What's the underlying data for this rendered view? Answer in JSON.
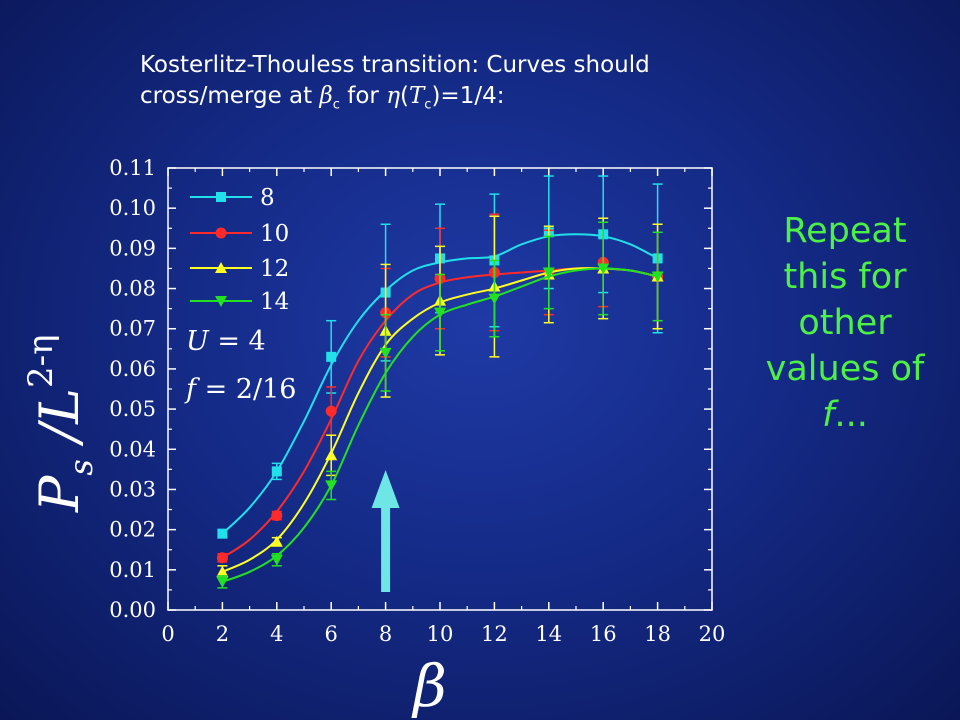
{
  "slide": {
    "title_line1": "Kosterlitz-Thouless transition: Curves should",
    "title_line2_prefix": "cross/merge at ",
    "title_beta": "β",
    "title_beta_sub": "c",
    "title_for": " for ",
    "title_eta": "η",
    "title_paren_open": "(",
    "title_T": "T",
    "title_T_sub": "c",
    "title_suffix": ")=1/4:",
    "note_line1": "Repeat",
    "note_line2": "this for",
    "note_line3": "other",
    "note_line4": "values of",
    "note_f": "f",
    "note_ellipsis": "..."
  },
  "chart_data": {
    "type": "line",
    "xlabel": "β",
    "ylabel_P": "P",
    "ylabel_s": "s",
    "ylabel_slash": " /L",
    "ylabel_exp": "2-η",
    "xlim": [
      0,
      20
    ],
    "ylim": [
      0.0,
      0.11
    ],
    "x_ticks": [
      "0",
      "2",
      "4",
      "6",
      "8",
      "10",
      "12",
      "14",
      "16",
      "18",
      "20"
    ],
    "y_ticks": [
      "0.00",
      "0.01",
      "0.02",
      "0.03",
      "0.04",
      "0.05",
      "0.06",
      "0.07",
      "0.08",
      "0.09",
      "0.10",
      "0.11"
    ],
    "annotations": {
      "U_label": "U",
      "U_value": " = 4",
      "f_label": "f",
      "f_value": " = 2/16"
    },
    "arrow_x": 8,
    "legend_position": "top-left",
    "series": [
      {
        "name": "8",
        "color": "#22e0ea",
        "marker": "square",
        "x": [
          2,
          4,
          6,
          8,
          10,
          12,
          14,
          16,
          18
        ],
        "y": [
          0.019,
          0.0345,
          0.063,
          0.079,
          0.0875,
          0.087,
          0.094,
          0.0935,
          0.0875
        ],
        "err": [
          0.001,
          0.002,
          0.009,
          0.017,
          0.0135,
          0.0165,
          0.014,
          0.0145,
          0.0185
        ],
        "fit_x": [
          2,
          3,
          4,
          5,
          6,
          7,
          8,
          9,
          10,
          11,
          12,
          13,
          14,
          15,
          16,
          17,
          18
        ],
        "fit_y": [
          0.019,
          0.0255,
          0.0345,
          0.047,
          0.061,
          0.072,
          0.0795,
          0.0845,
          0.0865,
          0.0875,
          0.088,
          0.091,
          0.093,
          0.0935,
          0.093,
          0.091,
          0.0875
        ]
      },
      {
        "name": "10",
        "color": "#ff2a2a",
        "marker": "circle",
        "x": [
          2,
          4,
          6,
          8,
          10,
          12,
          14,
          16,
          18
        ],
        "y": [
          0.013,
          0.0235,
          0.0495,
          0.074,
          0.0825,
          0.084,
          0.084,
          0.0865,
          0.083
        ],
        "err": [
          0.001,
          0.001,
          0.006,
          0.011,
          0.0125,
          0.0145,
          0.0105,
          0.011,
          0.013
        ],
        "fit_x": [
          2,
          3,
          4,
          5,
          6,
          7,
          8,
          9,
          10,
          11,
          12,
          13,
          14,
          15,
          16,
          17,
          18
        ],
        "fit_y": [
          0.013,
          0.0175,
          0.0245,
          0.0345,
          0.0475,
          0.062,
          0.072,
          0.0785,
          0.0815,
          0.0828,
          0.0835,
          0.084,
          0.0845,
          0.085,
          0.085,
          0.0845,
          0.083
        ]
      },
      {
        "name": "12",
        "color": "#ffff22",
        "marker": "triangle-up",
        "x": [
          2,
          4,
          6,
          8,
          10,
          12,
          14,
          16,
          18
        ],
        "y": [
          0.0095,
          0.017,
          0.0385,
          0.0695,
          0.077,
          0.0805,
          0.0835,
          0.085,
          0.083
        ],
        "err": [
          0.0015,
          0.001,
          0.005,
          0.0165,
          0.0135,
          0.0175,
          0.012,
          0.0125,
          0.013
        ],
        "fit_x": [
          2,
          3,
          4,
          5,
          6,
          7,
          8,
          9,
          10,
          11,
          12,
          13,
          14,
          15,
          16,
          17,
          18
        ],
        "fit_y": [
          0.0095,
          0.0125,
          0.0175,
          0.0265,
          0.039,
          0.054,
          0.066,
          0.0725,
          0.0765,
          0.0785,
          0.08,
          0.082,
          0.084,
          0.085,
          0.085,
          0.0845,
          0.083
        ]
      },
      {
        "name": "14",
        "color": "#22e022",
        "marker": "triangle-down",
        "x": [
          2,
          4,
          6,
          8,
          10,
          12,
          14,
          16,
          18
        ],
        "y": [
          0.007,
          0.0125,
          0.031,
          0.064,
          0.074,
          0.0775,
          0.084,
          0.085,
          0.083
        ],
        "err": [
          0.0015,
          0.0015,
          0.0035,
          0.0095,
          0.0095,
          0.0095,
          0.009,
          0.0115,
          0.011
        ],
        "fit_x": [
          2,
          3,
          4,
          5,
          6,
          7,
          8,
          9,
          10,
          11,
          12,
          13,
          14,
          15,
          16,
          17,
          18
        ],
        "fit_y": [
          0.007,
          0.0095,
          0.0135,
          0.0205,
          0.031,
          0.046,
          0.059,
          0.068,
          0.0735,
          0.076,
          0.078,
          0.0805,
          0.083,
          0.0845,
          0.085,
          0.0845,
          0.083
        ]
      }
    ]
  }
}
